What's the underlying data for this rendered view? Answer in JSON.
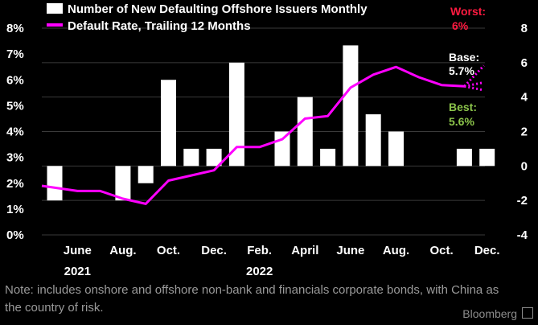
{
  "chart_data": {
    "type": "bar+line",
    "legend": {
      "bars": "Number of New Defaulting Offshore Issuers Monthly",
      "line": "Default Rate, Trailing 12 Months"
    },
    "x_tick_labels": [
      "June",
      "Aug.",
      "Oct.",
      "Dec.",
      "Feb.",
      "April",
      "June",
      "Aug.",
      "Oct.",
      "Dec."
    ],
    "year_labels": [
      "2021",
      "2022"
    ],
    "months": [
      "2021-05",
      "2021-06",
      "2021-07",
      "2021-08",
      "2021-09",
      "2021-10",
      "2021-11",
      "2021-12",
      "2022-01",
      "2022-02",
      "2022-03",
      "2022-04",
      "2022-05",
      "2022-06",
      "2022-07",
      "2022-08",
      "2022-09",
      "2022-10",
      "2022-11",
      "2022-12"
    ],
    "bars": {
      "axis": "right",
      "ylim": [
        -4,
        8
      ],
      "ticks": [
        -4,
        -2,
        0,
        2,
        4,
        6,
        8
      ],
      "tick_labels": [
        "-4",
        "-2",
        "0",
        "2",
        "4",
        "6",
        "8"
      ],
      "color": "#ffffff",
      "values": [
        -2,
        null,
        null,
        -2,
        -1,
        5,
        1,
        1,
        6,
        null,
        2,
        4,
        1,
        7,
        3,
        2,
        null,
        null,
        1,
        1
      ]
    },
    "line": {
      "axis": "left",
      "ylim": [
        0,
        8
      ],
      "ticks": [
        0,
        1,
        2,
        3,
        4,
        5,
        6,
        7,
        8
      ],
      "tick_labels": [
        "0%",
        "1%",
        "2%",
        "3%",
        "4%",
        "5%",
        "6%",
        "7%",
        "8%"
      ],
      "color": "#ff00ff",
      "values": [
        1.9,
        1.7,
        1.7,
        1.4,
        1.2,
        2.1,
        2.3,
        2.5,
        3.4,
        3.4,
        3.7,
        4.5,
        4.6,
        5.7,
        6.2,
        6.5,
        6.1,
        5.8,
        5.75,
        5.7
      ]
    },
    "scenarios": [
      {
        "label": "Worst:",
        "value": "6%",
        "y": 6.0,
        "color": "#ff1a40"
      },
      {
        "label": "Base:",
        "value": "5.7%",
        "y": 5.7,
        "color": "#ffffff"
      },
      {
        "label": "Best:",
        "value": "5.6%",
        "y": 5.6,
        "color": "#8bc34a"
      }
    ]
  },
  "note": "Note: includes onshore and offshore non-bank and financials corporate bonds, with China as the country of risk.",
  "brand": "Bloomberg"
}
